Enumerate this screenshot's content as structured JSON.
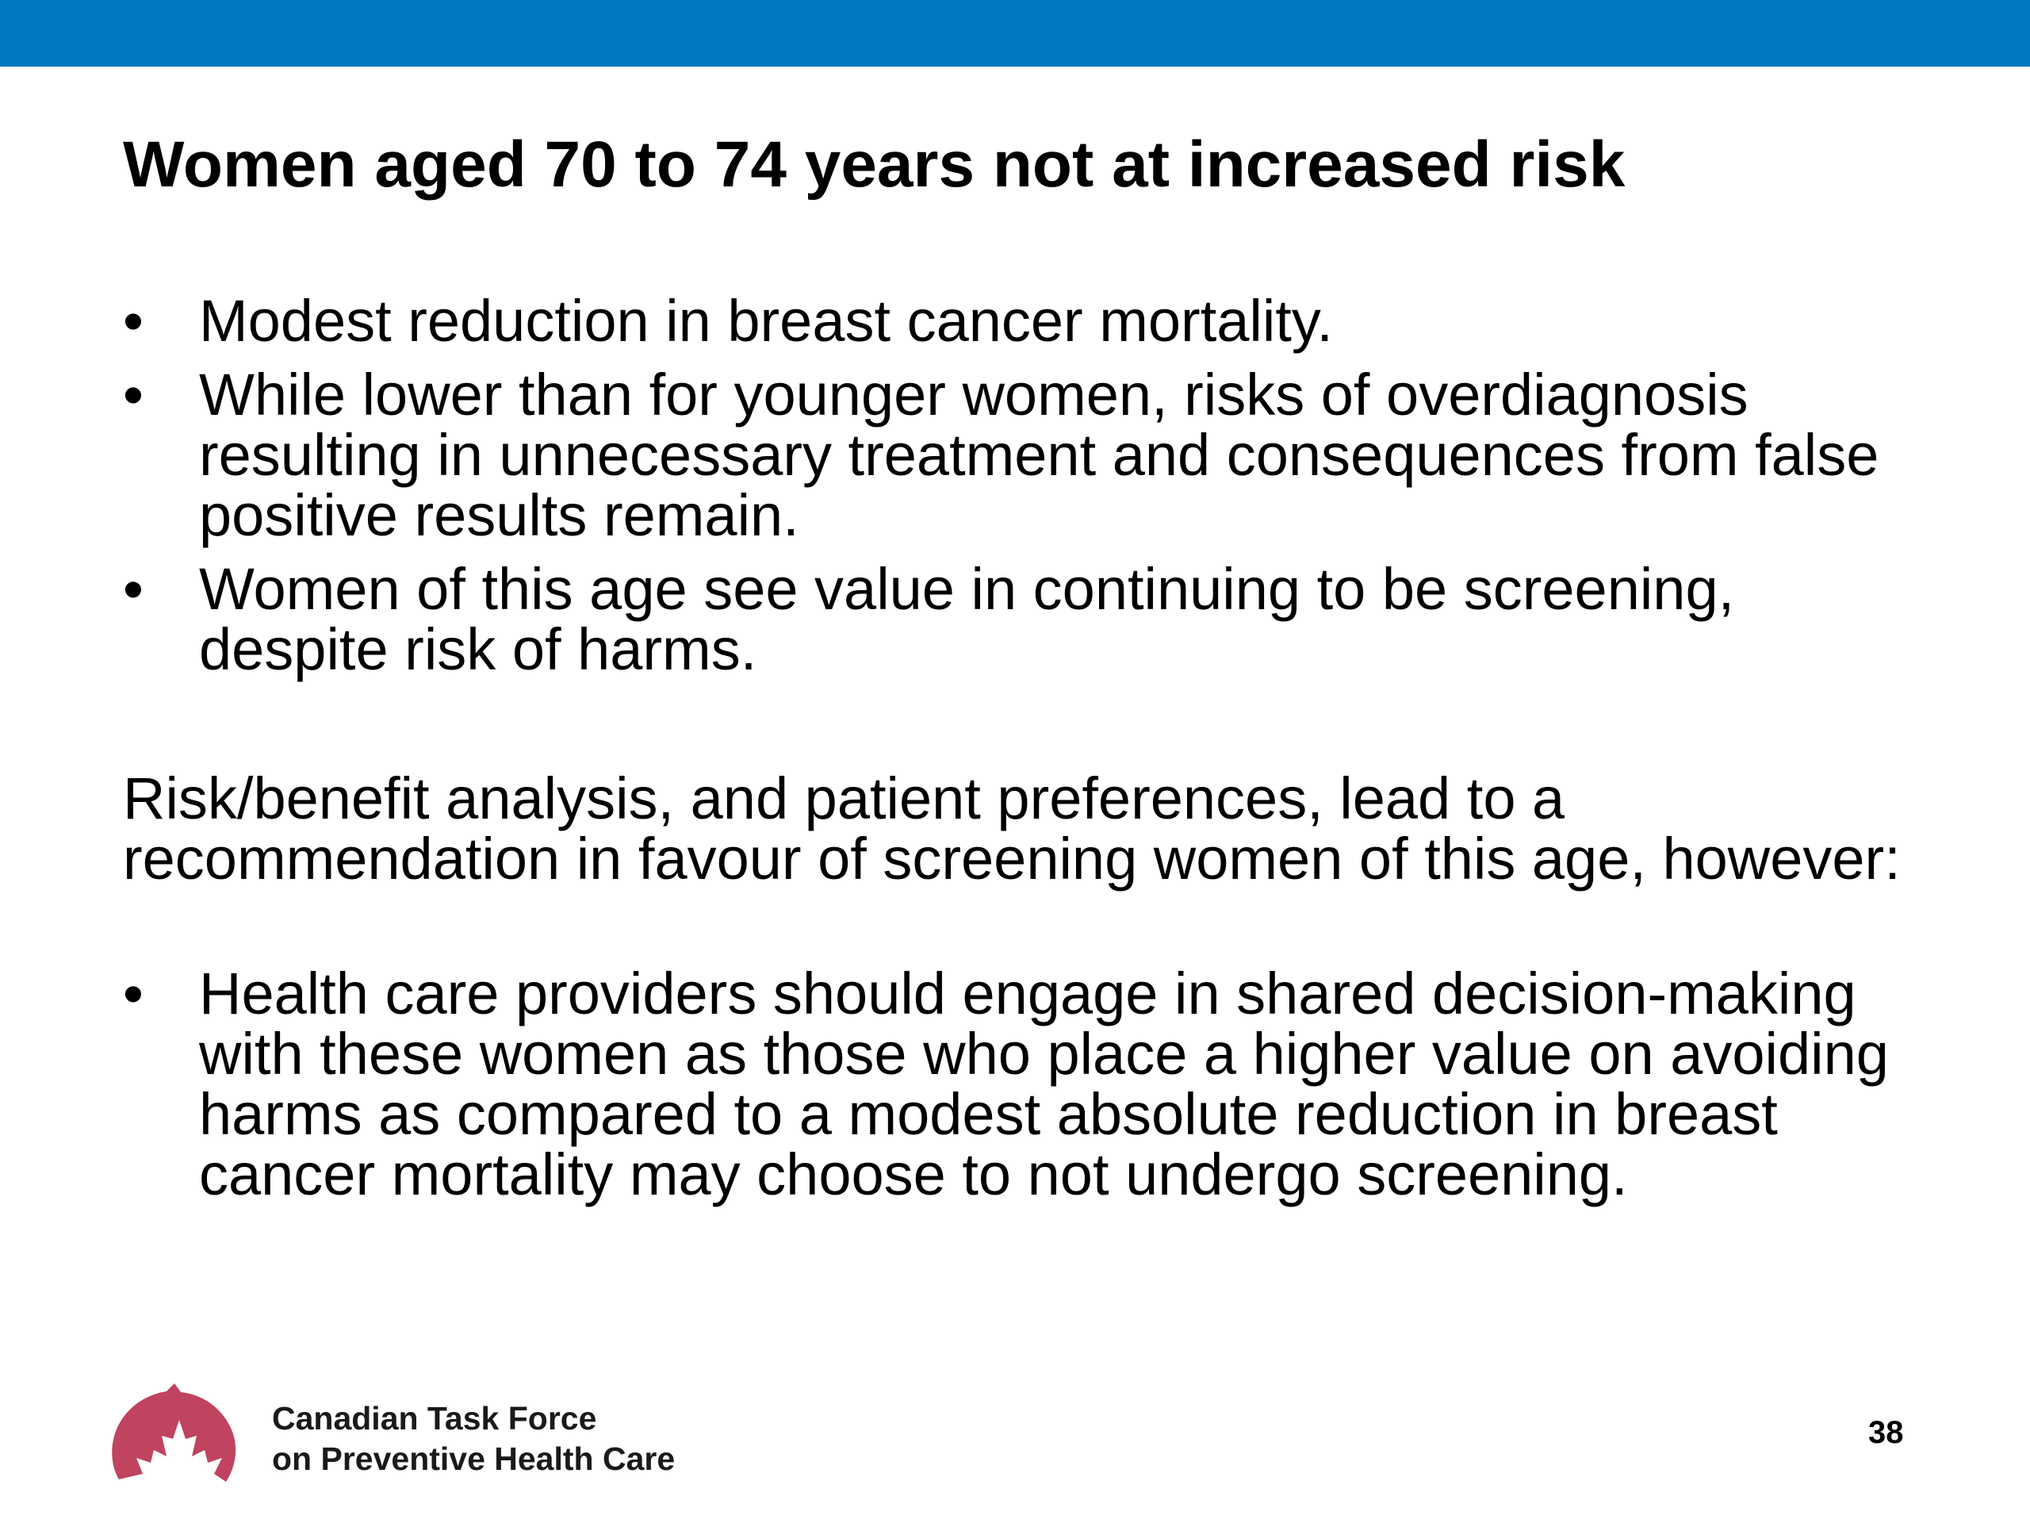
{
  "slide": {
    "title": "Women aged 70 to 74 years not at increased risk",
    "bullets": [
      "Modest reduction in breast cancer mortality.",
      "While lower than for younger women, risks of overdiagnosis resulting in unnecessary treatment and consequences from false positive results remain.",
      "Women of this age see value in continuing to be screening, despite risk of harms."
    ],
    "paragraph": "Risk/benefit analysis, and patient preferences, lead to a recommendation in favour of screening women of this age, however:",
    "sub_bullets": [
      "Health care providers should engage in shared decision-making with these women as those who place a higher value on avoiding harms as compared to a modest absolute reduction in breast cancer mortality may choose to not undergo screening."
    ],
    "bullet_glyph": "•"
  },
  "footer": {
    "org_line1": "Canadian Task Force",
    "org_line2": "on Preventive Health Care",
    "page_number": "38",
    "logo_icon": "maple-leaf-arc-icon"
  },
  "colors": {
    "top_bar": "#0077c0",
    "logo": "#c0435f"
  }
}
